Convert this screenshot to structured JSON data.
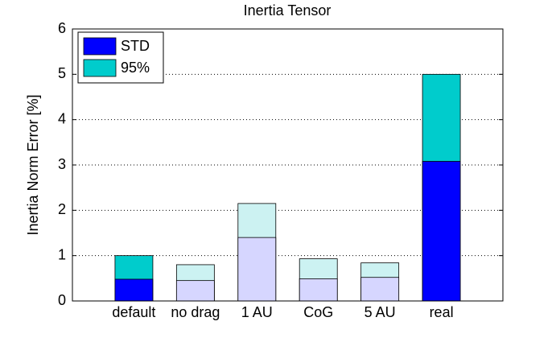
{
  "chart_data": {
    "type": "bar",
    "title": "Inertia Tensor",
    "y_label": "Inertia Norm Error [%]",
    "categories": [
      "default",
      "no drag",
      "1 AU",
      "CoG",
      "5 AU",
      "real"
    ],
    "highlighted": [
      true,
      false,
      false,
      false,
      false,
      true
    ],
    "series": [
      {
        "name": "STD",
        "color": "#0000ff",
        "faded_color": "#d6d6ff",
        "values": [
          0.48,
          0.45,
          1.4,
          0.49,
          0.52,
          3.08
        ]
      },
      {
        "name": "95%",
        "color": "#00cccc",
        "faded_color": "#ccf2f2",
        "values": [
          1.0,
          0.8,
          2.15,
          0.93,
          0.84,
          5.0
        ]
      }
    ],
    "ylim": [
      0,
      6
    ],
    "yticks": [
      0,
      1,
      2,
      3,
      4,
      5,
      6
    ],
    "grid": true,
    "legend": "top-left"
  }
}
